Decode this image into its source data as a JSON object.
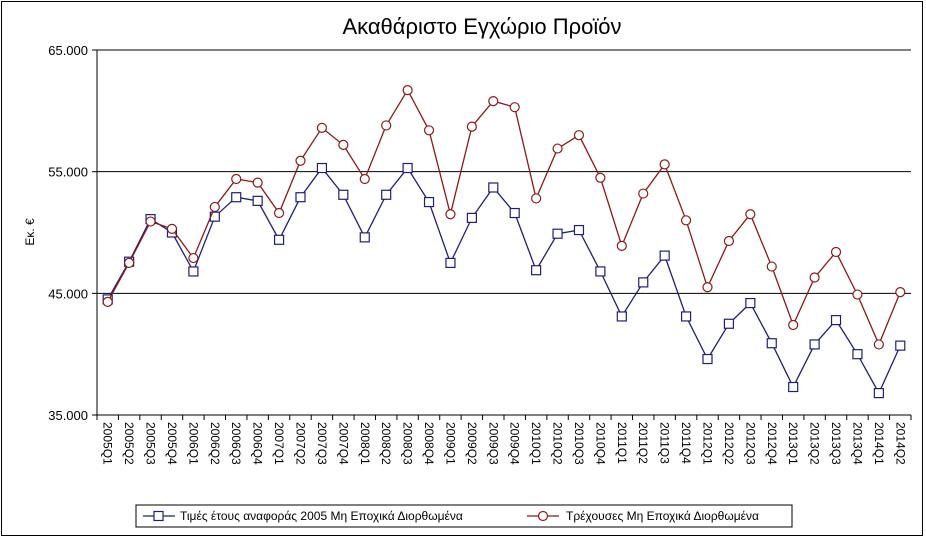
{
  "chart_data": {
    "type": "line",
    "title": "Ακαθάριστο Εγχώριο Προϊόν",
    "ylabel": "Εκ. €",
    "xlabel": "",
    "ylim": [
      35000,
      65000
    ],
    "yticks": [
      35000,
      45000,
      55000,
      65000
    ],
    "ytick_labels": [
      "35.000",
      "45.000",
      "55.000",
      "65.000"
    ],
    "grid": "horizontal",
    "legend_position": "bottom",
    "categories": [
      "2005Q1",
      "2005Q2",
      "2005Q3",
      "2005Q4",
      "2006Q1",
      "2006Q2",
      "2006Q3",
      "2006Q4",
      "2007Q1",
      "2007Q2",
      "2007Q3",
      "2007Q4",
      "2008Q1",
      "2008Q2",
      "2008Q3",
      "2008Q4",
      "2009Q1",
      "2009Q2",
      "2009Q3",
      "2009Q4",
      "2010Q1",
      "2010Q2",
      "2010Q3",
      "2010Q4",
      "2011Q1",
      "2011Q2",
      "2011Q3",
      "2011Q4",
      "2012Q1",
      "2012Q2",
      "2012Q3",
      "2012Q4",
      "2013Q1",
      "2013Q2",
      "2013Q3",
      "2013Q4",
      "2014Q1",
      "2014Q2"
    ],
    "series": [
      {
        "name": "Τιμές έτους αναφοράς 2005 Μη Εποχικά Διορθωμένα",
        "color": "#1f1f7a",
        "marker": "square",
        "values": [
          44500,
          47600,
          51100,
          50000,
          46800,
          51300,
          52900,
          52600,
          49400,
          52900,
          55300,
          53100,
          49600,
          53100,
          55300,
          52500,
          47500,
          51200,
          53700,
          51600,
          46900,
          49900,
          50200,
          46800,
          43100,
          45900,
          48100,
          43100,
          39600,
          42500,
          44200,
          40900,
          37300,
          40800,
          42800,
          40000,
          36800,
          40700
        ]
      },
      {
        "name": "Τρέχουσες Μη Εποχικά Διορθωμένα",
        "color": "#8b1a1a",
        "marker": "circle",
        "values": [
          44300,
          47500,
          50900,
          50300,
          47900,
          52100,
          54400,
          54100,
          51600,
          55900,
          58600,
          57200,
          54400,
          58800,
          61700,
          58400,
          51500,
          58700,
          60800,
          60300,
          52800,
          56900,
          58000,
          54500,
          48900,
          53200,
          55600,
          51000,
          45500,
          49300,
          51500,
          47200,
          42400,
          46300,
          48400,
          44900,
          40800,
          45100
        ]
      }
    ]
  }
}
